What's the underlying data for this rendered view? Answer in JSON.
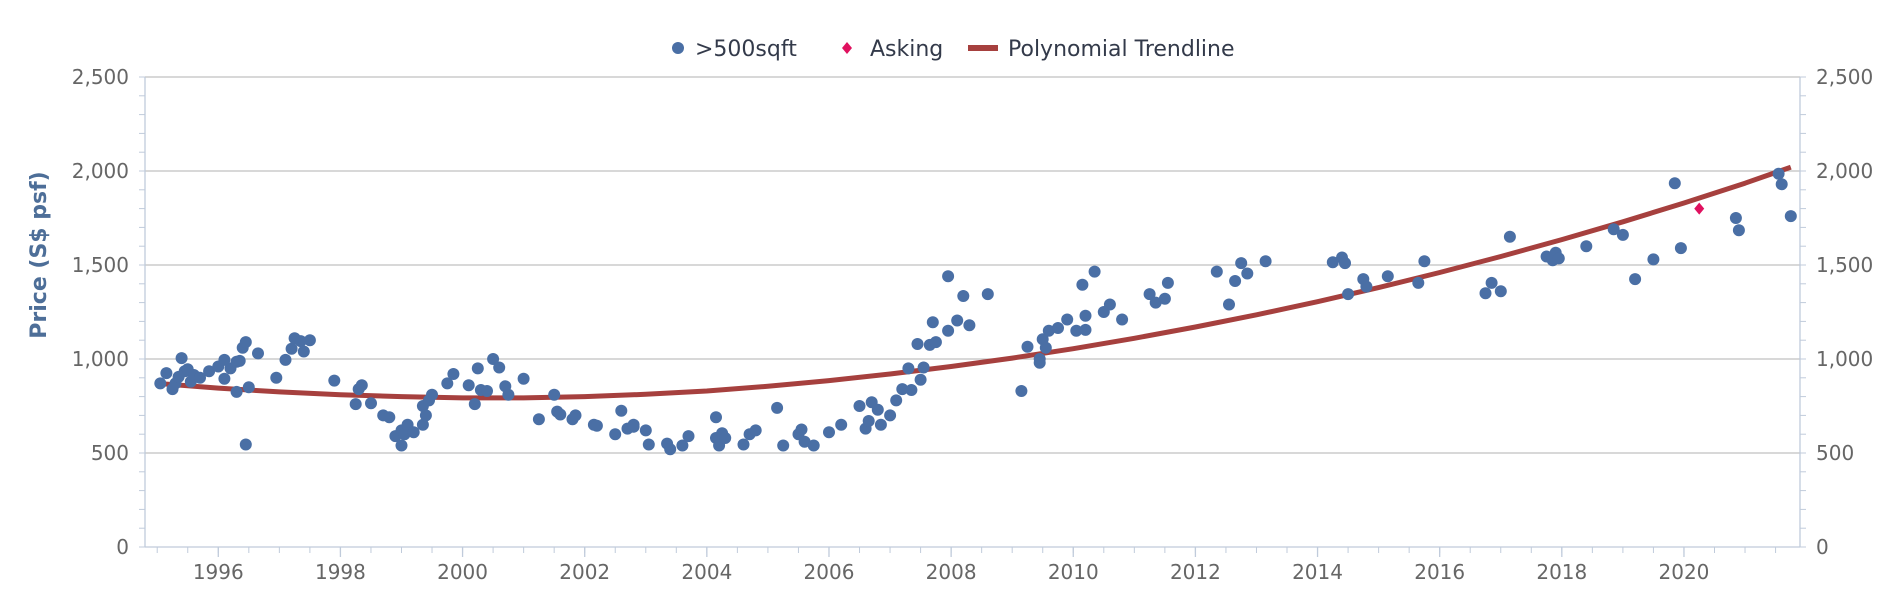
{
  "colors": {
    "scatter": "#4a6fa5",
    "asking": "#e0115f",
    "trendline": "#a6403e",
    "grid": "#c0c0c0",
    "axis": "#c0cbdb",
    "axis_title": "#4d6e98"
  },
  "legend": [
    {
      "label": ">500sqft",
      "marker": "circle",
      "color_key": "scatter"
    },
    {
      "label": "Asking",
      "marker": "diamond",
      "color_key": "asking"
    },
    {
      "label": "Polynomial Trendline",
      "marker": "line",
      "color_key": "trendline"
    }
  ],
  "chart_data": {
    "type": "scatter",
    "title": "",
    "xlabel": "",
    "ylabel": "Price (S$ psf)",
    "xlim": [
      1994.8,
      2021.9
    ],
    "ylim": [
      0,
      2500
    ],
    "x_ticks": [
      1996,
      1998,
      2000,
      2002,
      2004,
      2006,
      2008,
      2010,
      2012,
      2014,
      2016,
      2018,
      2020
    ],
    "x_tick_labels": [
      "1996",
      "1998",
      "2000",
      "2002",
      "2004",
      "2006",
      "2008",
      "2010",
      "2012",
      "2014",
      "2016",
      "2018",
      "2020"
    ],
    "y_ticks": [
      0,
      500,
      1000,
      1500,
      2000,
      2500
    ],
    "y_tick_labels": [
      "0",
      "500",
      "1,000",
      "1,500",
      "2,000",
      "2,500"
    ],
    "y_tick_labels_right": [
      "0",
      "500",
      "1,000",
      "1,500",
      "2,000",
      "2,500"
    ],
    "grid": true,
    "legend_position": "top-center",
    "series": [
      {
        "name": ">500sqft",
        "kind": "scatter",
        "points": [
          [
            1995.05,
            870
          ],
          [
            1995.15,
            925
          ],
          [
            1995.25,
            840
          ],
          [
            1995.3,
            870
          ],
          [
            1995.35,
            905
          ],
          [
            1995.4,
            1005
          ],
          [
            1995.45,
            935
          ],
          [
            1995.5,
            945
          ],
          [
            1995.55,
            880
          ],
          [
            1995.6,
            915
          ],
          [
            1995.7,
            900
          ],
          [
            1995.85,
            935
          ],
          [
            1996.0,
            960
          ],
          [
            1996.1,
            995
          ],
          [
            1996.1,
            895
          ],
          [
            1996.2,
            950
          ],
          [
            1996.3,
            985
          ],
          [
            1996.3,
            825
          ],
          [
            1996.35,
            990
          ],
          [
            1996.4,
            1060
          ],
          [
            1996.45,
            1090
          ],
          [
            1996.45,
            545
          ],
          [
            1996.5,
            850
          ],
          [
            1996.65,
            1030
          ],
          [
            1996.95,
            900
          ],
          [
            1997.1,
            995
          ],
          [
            1997.2,
            1055
          ],
          [
            1997.25,
            1110
          ],
          [
            1997.35,
            1095
          ],
          [
            1997.4,
            1040
          ],
          [
            1997.5,
            1100
          ],
          [
            1997.9,
            885
          ],
          [
            1998.25,
            760
          ],
          [
            1998.3,
            840
          ],
          [
            1998.35,
            860
          ],
          [
            1998.5,
            765
          ],
          [
            1998.7,
            700
          ],
          [
            1998.8,
            690
          ],
          [
            1998.9,
            590
          ],
          [
            1999.0,
            620
          ],
          [
            1999.0,
            540
          ],
          [
            1999.05,
            600
          ],
          [
            1999.1,
            650
          ],
          [
            1999.2,
            610
          ],
          [
            1999.35,
            650
          ],
          [
            1999.35,
            750
          ],
          [
            1999.4,
            700
          ],
          [
            1999.45,
            780
          ],
          [
            1999.5,
            810
          ],
          [
            1999.75,
            870
          ],
          [
            1999.85,
            920
          ],
          [
            2000.1,
            860
          ],
          [
            2000.2,
            760
          ],
          [
            2000.25,
            950
          ],
          [
            2000.3,
            835
          ],
          [
            2000.4,
            830
          ],
          [
            2000.5,
            1000
          ],
          [
            2000.6,
            955
          ],
          [
            2000.7,
            855
          ],
          [
            2000.75,
            810
          ],
          [
            2001.0,
            895
          ],
          [
            2001.25,
            680
          ],
          [
            2001.5,
            810
          ],
          [
            2001.55,
            720
          ],
          [
            2001.6,
            705
          ],
          [
            2001.8,
            680
          ],
          [
            2001.85,
            700
          ],
          [
            2002.15,
            650
          ],
          [
            2002.2,
            645
          ],
          [
            2002.5,
            600
          ],
          [
            2002.6,
            725
          ],
          [
            2002.7,
            630
          ],
          [
            2002.8,
            640
          ],
          [
            2002.8,
            650
          ],
          [
            2003.0,
            620
          ],
          [
            2003.05,
            545
          ],
          [
            2003.35,
            550
          ],
          [
            2003.4,
            520
          ],
          [
            2003.6,
            540
          ],
          [
            2003.7,
            590
          ],
          [
            2004.15,
            580
          ],
          [
            2004.15,
            690
          ],
          [
            2004.2,
            540
          ],
          [
            2004.25,
            605
          ],
          [
            2004.3,
            580
          ],
          [
            2004.6,
            545
          ],
          [
            2004.7,
            600
          ],
          [
            2004.8,
            620
          ],
          [
            2005.15,
            740
          ],
          [
            2005.25,
            540
          ],
          [
            2005.5,
            600
          ],
          [
            2005.55,
            625
          ],
          [
            2005.6,
            560
          ],
          [
            2005.75,
            540
          ],
          [
            2006.0,
            610
          ],
          [
            2006.2,
            650
          ],
          [
            2006.5,
            750
          ],
          [
            2006.6,
            630
          ],
          [
            2006.65,
            670
          ],
          [
            2006.7,
            770
          ],
          [
            2006.8,
            730
          ],
          [
            2006.85,
            650
          ],
          [
            2007.0,
            700
          ],
          [
            2007.1,
            780
          ],
          [
            2007.2,
            840
          ],
          [
            2007.3,
            950
          ],
          [
            2007.35,
            835
          ],
          [
            2007.45,
            1080
          ],
          [
            2007.5,
            890
          ],
          [
            2007.55,
            955
          ],
          [
            2007.65,
            1075
          ],
          [
            2007.7,
            1195
          ],
          [
            2007.75,
            1090
          ],
          [
            2007.95,
            1150
          ],
          [
            2007.95,
            1440
          ],
          [
            2008.1,
            1205
          ],
          [
            2008.2,
            1335
          ],
          [
            2008.3,
            1180
          ],
          [
            2008.6,
            1345
          ],
          [
            2009.15,
            830
          ],
          [
            2009.25,
            1065
          ],
          [
            2009.45,
            1000
          ],
          [
            2009.45,
            980
          ],
          [
            2009.5,
            1105
          ],
          [
            2009.55,
            1060
          ],
          [
            2009.6,
            1150
          ],
          [
            2009.75,
            1165
          ],
          [
            2009.9,
            1210
          ],
          [
            2010.05,
            1150
          ],
          [
            2010.15,
            1395
          ],
          [
            2010.2,
            1230
          ],
          [
            2010.2,
            1155
          ],
          [
            2010.35,
            1465
          ],
          [
            2010.5,
            1250
          ],
          [
            2010.6,
            1290
          ],
          [
            2010.8,
            1210
          ],
          [
            2011.25,
            1345
          ],
          [
            2011.35,
            1300
          ],
          [
            2011.5,
            1320
          ],
          [
            2011.55,
            1405
          ],
          [
            2012.35,
            1465
          ],
          [
            2012.55,
            1290
          ],
          [
            2012.65,
            1415
          ],
          [
            2012.75,
            1510
          ],
          [
            2012.85,
            1455
          ],
          [
            2013.15,
            1520
          ],
          [
            2014.25,
            1515
          ],
          [
            2014.4,
            1540
          ],
          [
            2014.45,
            1510
          ],
          [
            2014.5,
            1345
          ],
          [
            2014.75,
            1425
          ],
          [
            2014.8,
            1385
          ],
          [
            2015.15,
            1440
          ],
          [
            2015.65,
            1405
          ],
          [
            2015.75,
            1520
          ],
          [
            2016.75,
            1350
          ],
          [
            2016.85,
            1405
          ],
          [
            2017.0,
            1360
          ],
          [
            2017.15,
            1650
          ],
          [
            2017.75,
            1545
          ],
          [
            2017.85,
            1525
          ],
          [
            2017.85,
            1540
          ],
          [
            2017.9,
            1565
          ],
          [
            2017.95,
            1535
          ],
          [
            2018.4,
            1600
          ],
          [
            2018.85,
            1690
          ],
          [
            2019.0,
            1660
          ],
          [
            2019.2,
            1425
          ],
          [
            2019.5,
            1530
          ],
          [
            2019.85,
            1935
          ],
          [
            2019.95,
            1590
          ],
          [
            2020.85,
            1750
          ],
          [
            2020.9,
            1685
          ],
          [
            2021.55,
            1985
          ],
          [
            2021.6,
            1930
          ],
          [
            2021.75,
            1760
          ]
        ]
      },
      {
        "name": "Asking",
        "kind": "diamond",
        "points": [
          [
            2020.25,
            1800
          ]
        ]
      },
      {
        "name": "Polynomial Trendline",
        "kind": "line",
        "points": [
          [
            1995.0,
            870
          ],
          [
            1996.0,
            845
          ],
          [
            1997.0,
            825
          ],
          [
            1998.0,
            810
          ],
          [
            1999.0,
            800
          ],
          [
            2000.0,
            793
          ],
          [
            2001.0,
            793
          ],
          [
            2002.0,
            800
          ],
          [
            2003.0,
            812
          ],
          [
            2004.0,
            830
          ],
          [
            2005.0,
            855
          ],
          [
            2006.0,
            885
          ],
          [
            2007.0,
            920
          ],
          [
            2008.0,
            960
          ],
          [
            2009.0,
            1005
          ],
          [
            2010.0,
            1055
          ],
          [
            2011.0,
            1110
          ],
          [
            2012.0,
            1170
          ],
          [
            2013.0,
            1235
          ],
          [
            2014.0,
            1305
          ],
          [
            2015.0,
            1380
          ],
          [
            2016.0,
            1460
          ],
          [
            2017.0,
            1545
          ],
          [
            2018.0,
            1635
          ],
          [
            2019.0,
            1730
          ],
          [
            2020.0,
            1830
          ],
          [
            2021.0,
            1935
          ],
          [
            2021.75,
            2020
          ]
        ]
      }
    ]
  }
}
